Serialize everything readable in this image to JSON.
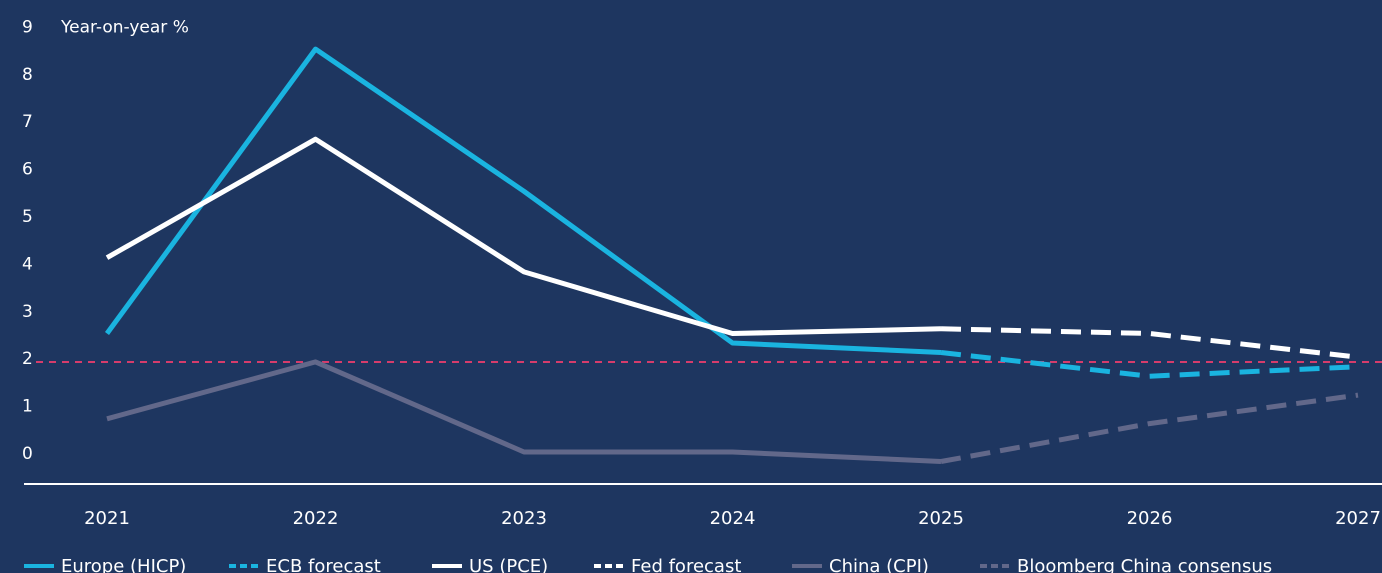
{
  "chart_data": {
    "type": "line",
    "ylabel": "Year-on-year %",
    "ylim": [
      0,
      9
    ],
    "yticks": [
      "0",
      "1",
      "2",
      "3",
      "4",
      "5",
      "6",
      "7",
      "8",
      "9"
    ],
    "categories": [
      "2021",
      "2022",
      "2023",
      "2024",
      "2025",
      "2026",
      "2027"
    ],
    "grid": false,
    "legend_position": "bottom",
    "reference_line": {
      "y": 1.9,
      "color": "#d63c6b",
      "style": "dashed"
    },
    "series": [
      {
        "name": "Europe (HICP)",
        "color": "#1ab4e0",
        "style": "solid",
        "points": [
          [
            "2021",
            2.5
          ],
          [
            "2022",
            8.5
          ],
          [
            "2023",
            5.5
          ],
          [
            "2024",
            2.3
          ],
          [
            "2025",
            2.1
          ]
        ]
      },
      {
        "name": "ECB forecast",
        "color": "#1ab4e0",
        "style": "dashed",
        "points": [
          [
            "2025",
            2.1
          ],
          [
            "2026",
            1.6
          ],
          [
            "2027",
            1.8
          ]
        ]
      },
      {
        "name": "US (PCE)",
        "color": "#ffffff",
        "style": "solid",
        "points": [
          [
            "2021",
            4.1
          ],
          [
            "2022",
            6.6
          ],
          [
            "2023",
            3.8
          ],
          [
            "2024",
            2.5
          ],
          [
            "2025",
            2.6
          ]
        ]
      },
      {
        "name": "Fed forecast",
        "color": "#ffffff",
        "style": "dashed",
        "points": [
          [
            "2025",
            2.6
          ],
          [
            "2026",
            2.5
          ],
          [
            "2027",
            2.0
          ]
        ]
      },
      {
        "name": "China (CPI)",
        "color": "#62688a",
        "style": "solid",
        "points": [
          [
            "2021",
            0.7
          ],
          [
            "2022",
            1.9
          ],
          [
            "2023",
            0.0
          ],
          [
            "2024",
            0.0
          ],
          [
            "2025",
            -0.2
          ]
        ]
      },
      {
        "name": "Bloomberg China consensus",
        "color": "#62688a",
        "style": "dashed",
        "points": [
          [
            "2025",
            -0.2
          ],
          [
            "2026",
            0.6
          ],
          [
            "2027",
            1.2
          ]
        ]
      }
    ]
  }
}
